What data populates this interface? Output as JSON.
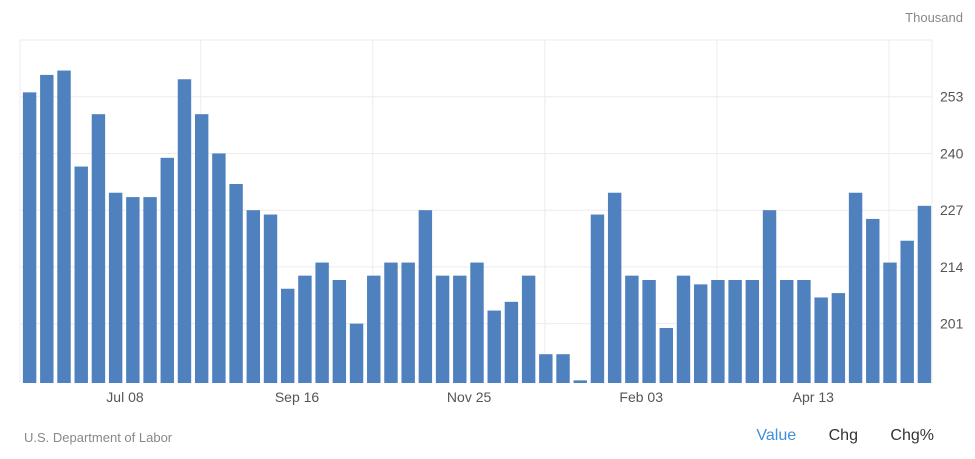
{
  "unit_label": "Thousand",
  "source": "U.S. Department of Labor",
  "tabs": [
    {
      "label": "Value",
      "active": true
    },
    {
      "label": "Chg",
      "active": false
    },
    {
      "label": "Chg%",
      "active": false
    }
  ],
  "colors": {
    "bar": "#4e81bd",
    "grid": "#ececec",
    "active_tab": "#3f8fdd"
  },
  "chart_data": {
    "type": "bar",
    "title": "",
    "xlabel": "",
    "ylabel": "",
    "ylim": [
      187.4,
      266
    ],
    "yticks": [
      201,
      214,
      227,
      240,
      253
    ],
    "x_tick_labels": [
      {
        "index": 5,
        "label": "Jul 08"
      },
      {
        "index": 15,
        "label": "Sep 16"
      },
      {
        "index": 25,
        "label": "Nov 25"
      },
      {
        "index": 35,
        "label": "Feb 03"
      },
      {
        "index": 45,
        "label": "Apr 13"
      }
    ],
    "values": [
      254,
      258,
      259,
      237,
      249,
      231,
      230,
      230,
      239,
      257,
      249,
      240,
      233,
      227,
      226,
      209,
      212,
      215,
      211,
      201,
      212,
      215,
      215,
      227,
      212,
      212,
      215,
      204,
      206,
      212,
      194,
      194,
      188,
      226,
      231,
      212,
      211,
      200,
      212,
      210,
      211,
      211,
      211,
      227,
      211,
      211,
      207,
      208,
      231,
      225,
      215,
      220,
      228
    ],
    "grid": true
  }
}
